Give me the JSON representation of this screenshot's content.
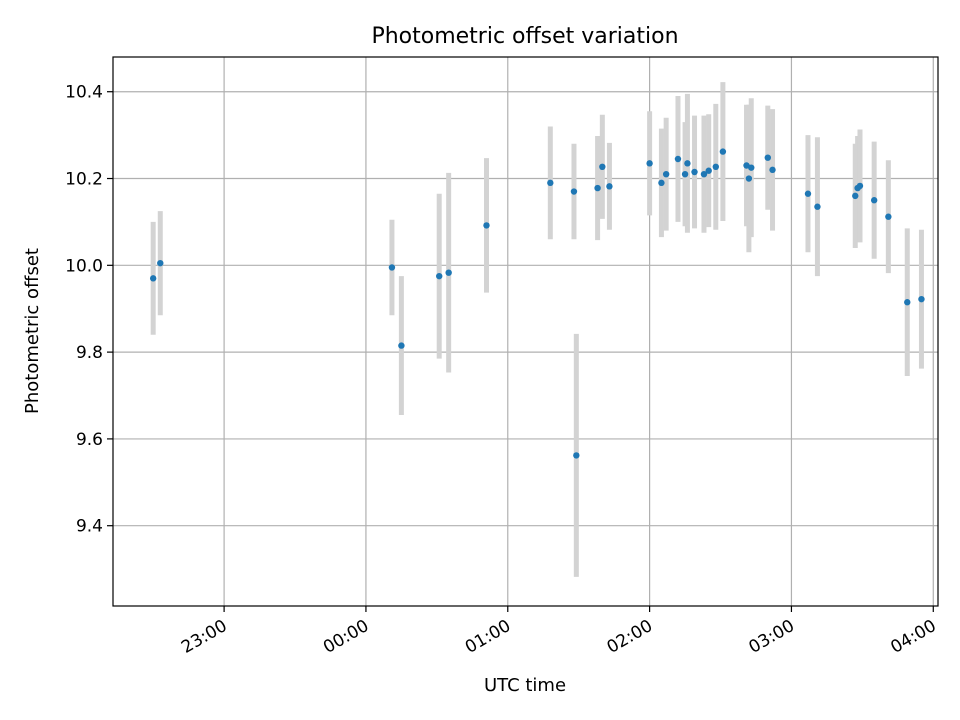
{
  "chart_data": {
    "type": "scatter",
    "title": "Photometric offset variation",
    "xlabel": "UTC time",
    "ylabel": "Photometric offset",
    "x_unit": "UTC time (HH:MM)",
    "xlim": [
      "22:13",
      "04:02"
    ],
    "ylim": [
      9.215,
      10.48
    ],
    "grid": true,
    "x_ticks": [
      "23:00",
      "00:00",
      "01:00",
      "02:00",
      "03:00",
      "04:00"
    ],
    "y_ticks": [
      9.4,
      9.6,
      9.8,
      10.0,
      10.2,
      10.4
    ],
    "y_tick_labels": [
      "9.4",
      "9.6",
      "9.8",
      "10.0",
      "10.2",
      "10.4"
    ],
    "colors": {
      "point": "#1f77b4",
      "errorbar": "#d3d3d3",
      "grid": "#b0b0b0"
    },
    "points": [
      {
        "x": "22:30",
        "y": 9.97,
        "err": 0.13
      },
      {
        "x": "22:33",
        "y": 10.005,
        "err": 0.12
      },
      {
        "x": "00:11",
        "y": 9.995,
        "err": 0.11
      },
      {
        "x": "00:15",
        "y": 9.815,
        "err": 0.16
      },
      {
        "x": "00:31",
        "y": 9.975,
        "err": 0.19
      },
      {
        "x": "00:35",
        "y": 9.983,
        "err": 0.23
      },
      {
        "x": "00:51",
        "y": 10.092,
        "err": 0.155
      },
      {
        "x": "01:18",
        "y": 10.19,
        "err": 0.13
      },
      {
        "x": "01:28",
        "y": 10.17,
        "err": 0.11
      },
      {
        "x": "01:29",
        "y": 9.562,
        "err": 0.28
      },
      {
        "x": "01:38",
        "y": 10.178,
        "err": 0.12
      },
      {
        "x": "01:40",
        "y": 10.227,
        "err": 0.12
      },
      {
        "x": "01:43",
        "y": 10.182,
        "err": 0.1
      },
      {
        "x": "02:00",
        "y": 10.235,
        "err": 0.12
      },
      {
        "x": "02:05",
        "y": 10.19,
        "err": 0.125
      },
      {
        "x": "02:07",
        "y": 10.21,
        "err": 0.13
      },
      {
        "x": "02:12",
        "y": 10.245,
        "err": 0.145
      },
      {
        "x": "02:15",
        "y": 10.21,
        "err": 0.12
      },
      {
        "x": "02:16",
        "y": 10.235,
        "err": 0.16
      },
      {
        "x": "02:19",
        "y": 10.215,
        "err": 0.13
      },
      {
        "x": "02:23",
        "y": 10.21,
        "err": 0.135
      },
      {
        "x": "02:25",
        "y": 10.218,
        "err": 0.13
      },
      {
        "x": "02:28",
        "y": 10.227,
        "err": 0.145
      },
      {
        "x": "02:31",
        "y": 10.262,
        "err": 0.16
      },
      {
        "x": "02:41",
        "y": 10.23,
        "err": 0.14
      },
      {
        "x": "02:42",
        "y": 10.2,
        "err": 0.17
      },
      {
        "x": "02:43",
        "y": 10.225,
        "err": 0.16
      },
      {
        "x": "02:50",
        "y": 10.248,
        "err": 0.12
      },
      {
        "x": "02:52",
        "y": 10.22,
        "err": 0.14
      },
      {
        "x": "03:07",
        "y": 10.165,
        "err": 0.135
      },
      {
        "x": "03:11",
        "y": 10.135,
        "err": 0.16
      },
      {
        "x": "03:27",
        "y": 10.16,
        "err": 0.12
      },
      {
        "x": "03:28",
        "y": 10.178,
        "err": 0.12
      },
      {
        "x": "03:29",
        "y": 10.183,
        "err": 0.13
      },
      {
        "x": "03:35",
        "y": 10.15,
        "err": 0.135
      },
      {
        "x": "03:41",
        "y": 10.112,
        "err": 0.13
      },
      {
        "x": "03:49",
        "y": 9.915,
        "err": 0.17
      },
      {
        "x": "03:55",
        "y": 9.922,
        "err": 0.16
      }
    ]
  }
}
